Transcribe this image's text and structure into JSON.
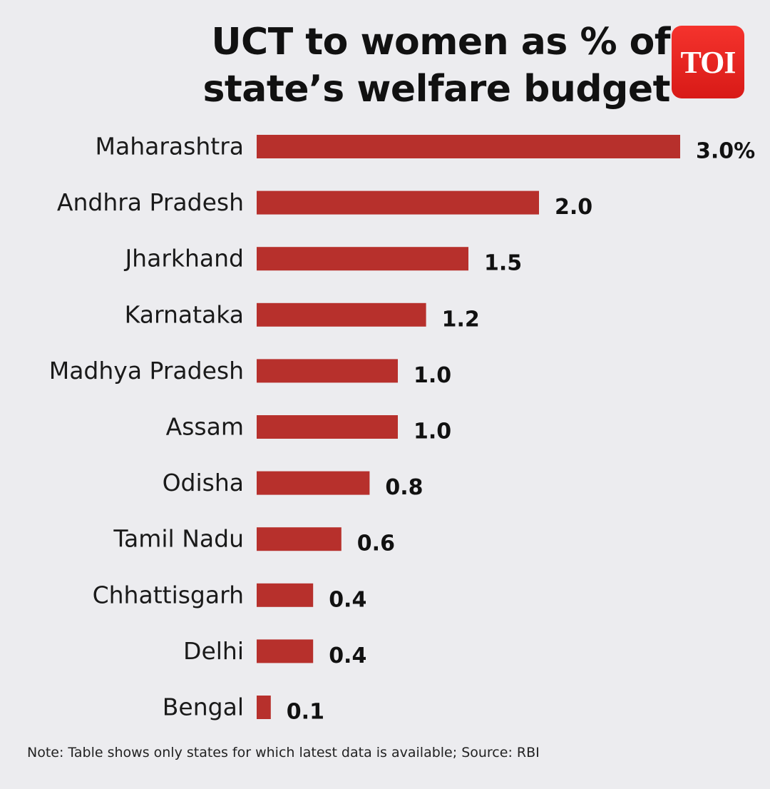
{
  "header": {
    "title_line1": "UCT to women as % of",
    "title_line2": "state’s welfare budget",
    "logo_text": "TOI"
  },
  "chart_data": {
    "type": "bar",
    "orientation": "horizontal",
    "title": "UCT to women as % of state’s welfare budget",
    "categories": [
      "Maharashtra",
      "Andhra Pradesh",
      "Jharkhand",
      "Karnataka",
      "Madhya Pradesh",
      "Assam",
      "Odisha",
      "Tamil Nadu",
      "Chhattisgarh",
      "Delhi",
      "Bengal"
    ],
    "values": [
      3.0,
      2.0,
      1.5,
      1.2,
      1.0,
      1.0,
      0.8,
      0.6,
      0.4,
      0.4,
      0.1
    ],
    "value_labels": [
      "3.0%",
      "2.0",
      "1.5",
      "1.2",
      "1.0",
      "1.0",
      "0.8",
      "0.6",
      "0.4",
      "0.4",
      "0.1"
    ],
    "unit": "%",
    "xlabel": "",
    "ylabel": "",
    "bar_color": "#b7302c"
  },
  "footer": {
    "note": "Note: Table shows only states for which latest data is available; Source: RBI"
  }
}
